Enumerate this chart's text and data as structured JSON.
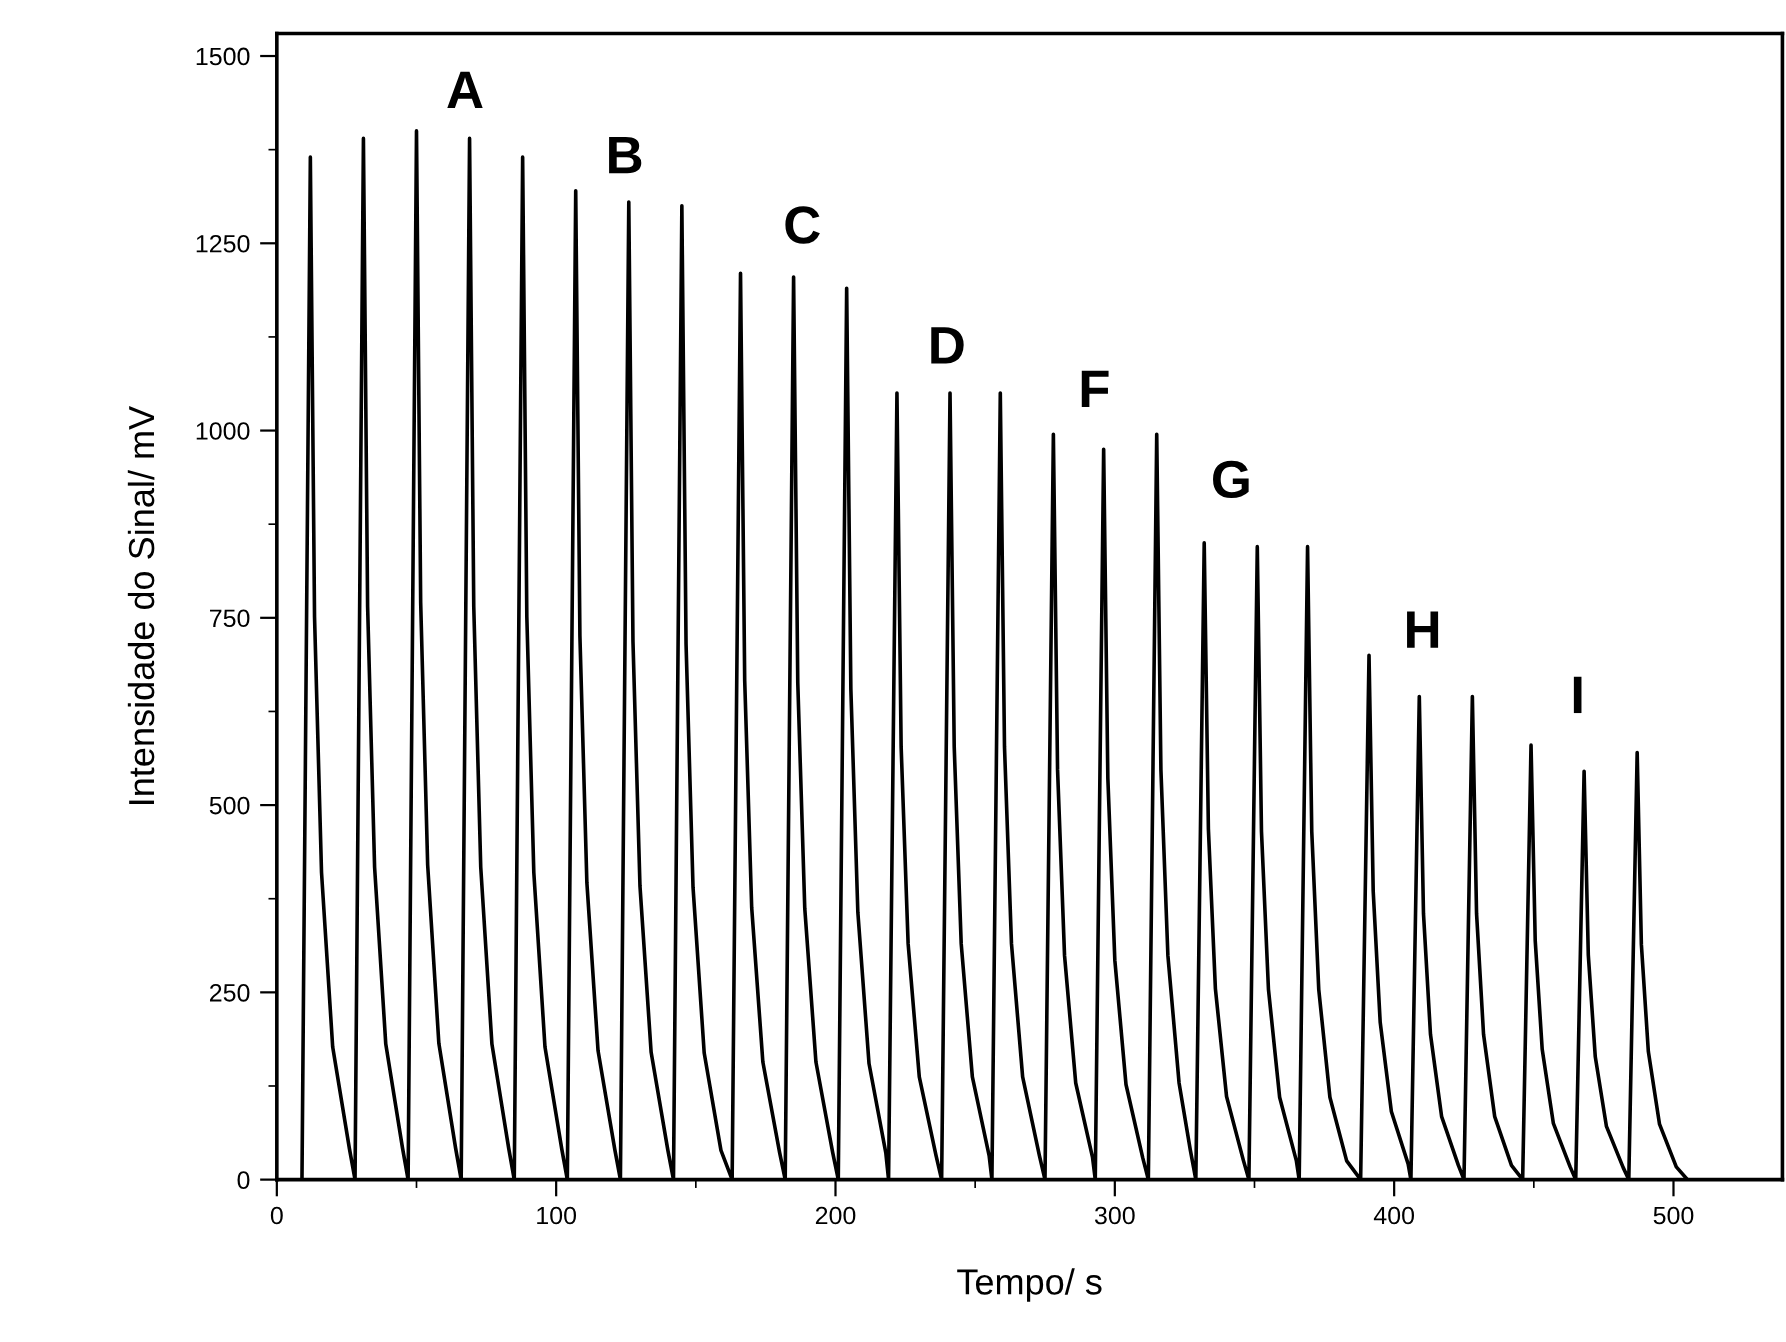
{
  "chart_data": {
    "type": "line",
    "xlabel": "Tempo/ s",
    "ylabel": "Intensidade do Sinal/ mV",
    "xlim": [
      0,
      539
    ],
    "ylim": [
      0,
      1530
    ],
    "xticks": [
      0,
      100,
      200,
      300,
      400,
      500
    ],
    "yticks": [
      0,
      250,
      500,
      750,
      1000,
      1250,
      1500
    ],
    "grid": false,
    "legend": false,
    "marker": "none",
    "line_style": "solid",
    "annotations": [
      "A",
      "B",
      "C",
      "D",
      "F",
      "G",
      "H",
      "I"
    ],
    "series": [
      {
        "color": "#000000",
        "x": [
          9,
          12,
          13.5,
          16,
          20,
          26,
          28,
          31,
          32.5,
          35,
          39,
          45,
          47,
          50,
          51.5,
          54,
          58,
          64,
          66,
          69,
          70.5,
          73,
          77,
          83,
          85,
          88,
          89.5,
          92,
          96,
          102,
          104,
          107,
          108.5,
          111,
          115,
          121,
          123,
          126,
          127.5,
          130,
          134,
          140,
          142,
          145,
          146.5,
          149,
          153,
          159,
          163,
          166,
          167.5,
          170,
          174,
          180,
          182,
          185,
          186.5,
          189,
          193,
          199,
          201,
          204,
          205.5,
          208,
          212,
          218,
          219,
          222,
          223.5,
          226,
          230,
          236,
          238,
          241,
          242.5,
          245,
          249,
          255,
          256,
          259,
          260.5,
          263,
          267,
          273,
          275,
          278,
          279.5,
          282,
          286,
          292,
          293,
          296,
          297.5,
          300,
          304,
          310,
          312,
          315,
          316.5,
          319,
          323,
          327,
          329,
          332,
          333.5,
          336,
          340,
          346,
          348,
          351,
          352.5,
          355,
          359,
          365,
          366,
          369,
          370.5,
          373,
          377,
          383,
          388,
          391,
          392.5,
          395,
          399,
          405,
          406,
          409,
          410.5,
          413,
          417,
          423,
          425,
          428,
          429.5,
          432,
          436,
          442,
          446,
          449,
          450.5,
          453,
          457,
          463,
          465,
          468,
          469.5,
          472,
          476,
          482,
          484,
          487,
          488.5,
          491,
          495,
          501,
          505
        ],
        "values": [
          0,
          1365,
          751,
          410,
          177,
          41,
          0,
          1390,
          765,
          417,
          181,
          42,
          0,
          1400,
          770,
          420,
          182,
          42,
          0,
          1390,
          765,
          417,
          181,
          42,
          0,
          1365,
          751,
          410,
          177,
          41,
          0,
          1320,
          726,
          396,
          172,
          40,
          0,
          1305,
          718,
          392,
          170,
          39,
          0,
          1300,
          715,
          390,
          169,
          39,
          0,
          1210,
          666,
          363,
          157,
          36,
          0,
          1205,
          663,
          362,
          157,
          36,
          0,
          1190,
          655,
          357,
          155,
          36,
          0,
          1050,
          578,
          315,
          137,
          32,
          0,
          1050,
          578,
          315,
          137,
          32,
          0,
          1050,
          578,
          315,
          137,
          32,
          0,
          995,
          547,
          299,
          129,
          30,
          0,
          975,
          536,
          293,
          127,
          29,
          0,
          995,
          547,
          299,
          129,
          40,
          0,
          850,
          468,
          255,
          111,
          26,
          0,
          845,
          465,
          254,
          110,
          25,
          0,
          845,
          465,
          254,
          110,
          25,
          0,
          700,
          385,
          210,
          91,
          21,
          0,
          645,
          355,
          194,
          84,
          19,
          0,
          645,
          355,
          194,
          84,
          19,
          0,
          580,
          319,
          174,
          75,
          17,
          0,
          545,
          300,
          164,
          71,
          16,
          0,
          570,
          314,
          171,
          74,
          17,
          0
        ]
      }
    ]
  }
}
